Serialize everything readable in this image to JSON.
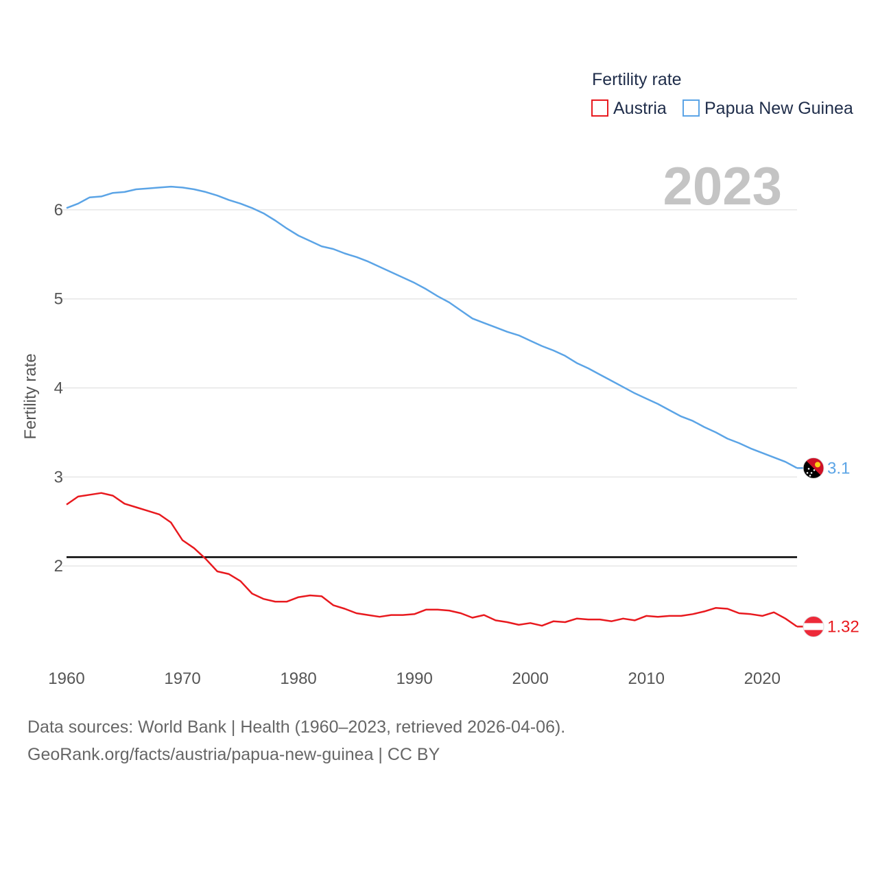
{
  "chart_data": {
    "type": "line",
    "legend_title": "Fertility rate",
    "ylabel": "Fertility rate",
    "xlabel": "",
    "year_label": "2023",
    "xlim": [
      1960,
      2023
    ],
    "ylim": [
      1.0,
      6.7
    ],
    "x_ticks": [
      1960,
      1970,
      1980,
      1990,
      2000,
      2010,
      2020
    ],
    "x_tick_labels": [
      "1960",
      "1970",
      "1980",
      "1990",
      "2000",
      "2010",
      "2020"
    ],
    "y_ticks": [
      2,
      3,
      4,
      5,
      6
    ],
    "y_tick_labels": [
      "2",
      "3",
      "4",
      "5",
      "6"
    ],
    "reference_line": 2.1,
    "x": [
      1960,
      1961,
      1962,
      1963,
      1964,
      1965,
      1966,
      1967,
      1968,
      1969,
      1970,
      1971,
      1972,
      1973,
      1974,
      1975,
      1976,
      1977,
      1978,
      1979,
      1980,
      1981,
      1982,
      1983,
      1984,
      1985,
      1986,
      1987,
      1988,
      1989,
      1990,
      1991,
      1992,
      1993,
      1994,
      1995,
      1996,
      1997,
      1998,
      1999,
      2000,
      2001,
      2002,
      2003,
      2004,
      2005,
      2006,
      2007,
      2008,
      2009,
      2010,
      2011,
      2012,
      2013,
      2014,
      2015,
      2016,
      2017,
      2018,
      2019,
      2020,
      2021,
      2022,
      2023
    ],
    "series": [
      {
        "name": "Austria",
        "color": "#e8191e",
        "end_label": "1.32",
        "flag": "austria-flag",
        "values": [
          2.69,
          2.78,
          2.8,
          2.82,
          2.79,
          2.7,
          2.66,
          2.62,
          2.58,
          2.49,
          2.29,
          2.2,
          2.08,
          1.94,
          1.91,
          1.83,
          1.69,
          1.63,
          1.6,
          1.6,
          1.65,
          1.67,
          1.66,
          1.56,
          1.52,
          1.47,
          1.45,
          1.43,
          1.45,
          1.45,
          1.46,
          1.51,
          1.51,
          1.5,
          1.47,
          1.42,
          1.45,
          1.39,
          1.37,
          1.34,
          1.36,
          1.33,
          1.38,
          1.37,
          1.41,
          1.4,
          1.4,
          1.38,
          1.41,
          1.39,
          1.44,
          1.43,
          1.44,
          1.44,
          1.46,
          1.49,
          1.53,
          1.52,
          1.47,
          1.46,
          1.44,
          1.48,
          1.41,
          1.32
        ]
      },
      {
        "name": "Papua New Guinea",
        "color": "#5ba4e6",
        "end_label": "3.1",
        "flag": "papua-new-guinea-flag",
        "values": [
          6.02,
          6.07,
          6.14,
          6.15,
          6.19,
          6.2,
          6.23,
          6.24,
          6.25,
          6.26,
          6.25,
          6.23,
          6.2,
          6.16,
          6.11,
          6.07,
          6.02,
          5.96,
          5.88,
          5.79,
          5.71,
          5.65,
          5.59,
          5.56,
          5.51,
          5.47,
          5.42,
          5.36,
          5.3,
          5.24,
          5.18,
          5.11,
          5.03,
          4.96,
          4.87,
          4.78,
          4.73,
          4.68,
          4.63,
          4.59,
          4.53,
          4.47,
          4.42,
          4.36,
          4.28,
          4.22,
          4.15,
          4.08,
          4.01,
          3.94,
          3.88,
          3.82,
          3.75,
          3.68,
          3.63,
          3.56,
          3.5,
          3.43,
          3.38,
          3.32,
          3.27,
          3.22,
          3.17,
          3.1
        ]
      }
    ]
  },
  "footer": {
    "line1": "Data sources: World Bank | Health (1960–2023, retrieved 2026-04-06).",
    "line2": "GeoRank.org/facts/austria/papua-new-guinea | CC BY"
  }
}
